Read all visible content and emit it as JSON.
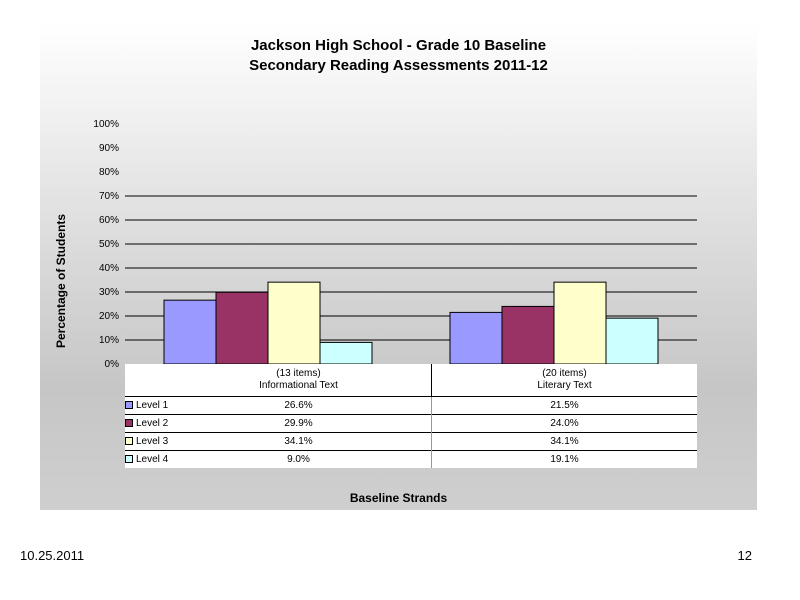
{
  "footer": {
    "date": "10.25.2011",
    "page": "12"
  },
  "chart_data": {
    "type": "bar",
    "title": "Jackson High School - Grade 10 Baseline",
    "subtitle": "Secondary Reading Assessments 2011-12",
    "xlabel": "Baseline Strands",
    "ylabel": "Percentage of Students",
    "ylim": [
      0,
      100
    ],
    "yticks": [
      "0%",
      "10%",
      "20%",
      "30%",
      "40%",
      "50%",
      "60%",
      "70%",
      "80%",
      "90%",
      "100%"
    ],
    "grid": "horizontal lines at 10%-70%",
    "categories": [
      {
        "line1": "(13 items)",
        "line2": "Informational Text"
      },
      {
        "line1": "(20 items)",
        "line2": "Literary Text"
      }
    ],
    "series": [
      {
        "name": "Level 1",
        "color": "#9999ff",
        "values": [
          26.6,
          21.5
        ],
        "labels": [
          "26.6%",
          "21.5%"
        ]
      },
      {
        "name": "Level 2",
        "color": "#993366",
        "values": [
          29.9,
          24.0
        ],
        "labels": [
          "29.9%",
          "24.0%"
        ]
      },
      {
        "name": "Level 3",
        "color": "#ffffcc",
        "values": [
          34.1,
          34.1
        ],
        "labels": [
          "34.1%",
          "34.1%"
        ]
      },
      {
        "name": "Level 4",
        "color": "#ccffff",
        "values": [
          9.0,
          19.1
        ],
        "labels": [
          "9.0%",
          "19.1%"
        ]
      }
    ]
  }
}
